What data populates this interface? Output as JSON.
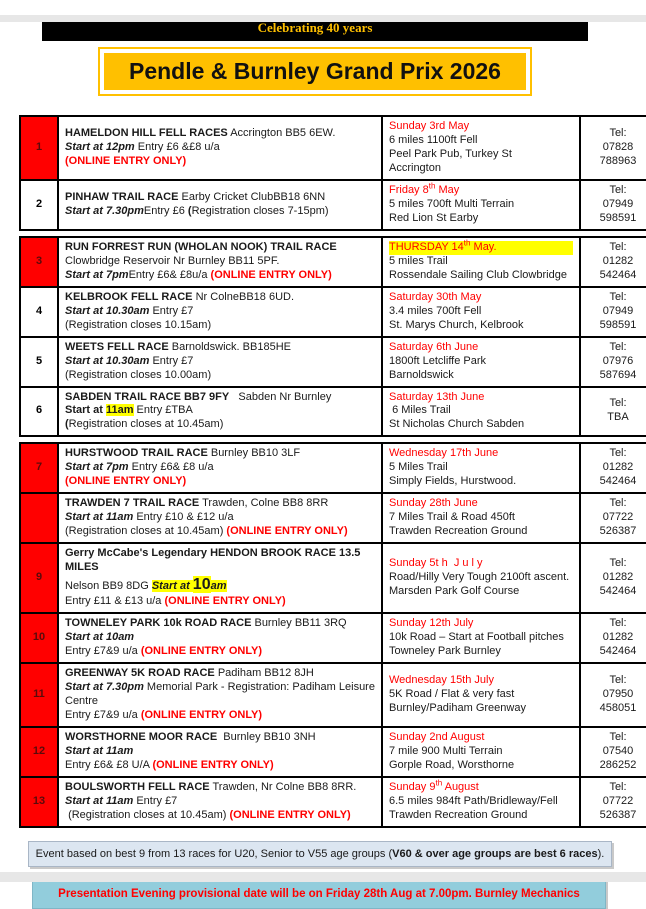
{
  "banner": {
    "text": "Celebrating 40 years"
  },
  "title": {
    "text": "Pendle & Burnley Grand Prix 2026"
  },
  "colors": {
    "accent_red": "#FF0000",
    "highlight_yellow": "#FFFF00",
    "title_gold": "#FFC000",
    "age_note_bg": "#DCE6F1",
    "presentation_bg": "#92CDDC"
  },
  "sections": [
    {
      "rows": [
        {
          "num": "1",
          "num_red": true,
          "details": [
            [
              {
                "t": "HAMELDON HILL FELL RACES",
                "s": "b"
              },
              {
                "t": " Accrington BB5 6EW.",
                "s": "r"
              }
            ],
            [
              {
                "t": "Start at 12pm",
                "s": "bi"
              },
              {
                "t": " Entry £6 &£8 u/a",
                "s": "r"
              }
            ],
            [
              {
                "t": "(ONLINE ENTRY ONLY)",
                "s": "red"
              }
            ]
          ],
          "date": [
            {
              "t": "Sunday 3rd May",
              "s": "red"
            },
            {
              "t": "6 miles 1100ft Fell",
              "s": "plain"
            },
            {
              "t": "Peel Park Pub, Turkey St",
              "s": "plain"
            },
            {
              "t": "Accrington",
              "s": "plain"
            }
          ],
          "tel_label": "Tel:",
          "tel": "07828 788963"
        },
        {
          "num": "2",
          "num_red": false,
          "details": [
            [
              {
                "t": "PINHAW TRAIL RACE",
                "s": "b"
              },
              {
                "t": " Earby Cricket ClubBB18 6NN",
                "s": "r"
              }
            ],
            [
              {
                "t": "Start at 7.30pm",
                "s": "bi"
              },
              {
                "t": "Entry £6 ",
                "s": "r"
              },
              {
                "t": "(",
                "s": "b"
              },
              {
                "t": "Registration closes 7-15pm)",
                "s": "r"
              }
            ]
          ],
          "date": [
            {
              "t": "Friday 8^th May",
              "s": "red"
            },
            {
              "t": "5 miles 700ft Multi Terrain",
              "s": "plain"
            },
            {
              "t": "Red Lion St Earby",
              "s": "plain"
            }
          ],
          "tel_label": "Tel:",
          "tel": "07949 598591"
        }
      ]
    },
    {
      "rows": [
        {
          "num": "3",
          "num_red": true,
          "details": [
            [
              {
                "t": "RUN FORREST RUN (WHOLAN NOOK) TRAIL RACE",
                "s": "b"
              },
              {
                "t": " Clowbridge Reservoir Nr Burnley BB11 5PF.",
                "s": "r"
              }
            ],
            [
              {
                "t": "Start at 7pm",
                "s": "bi"
              },
              {
                "t": "Entry £6& £8u/a ",
                "s": "r"
              },
              {
                "t": "(ONLINE ENTRY ONLY)",
                "s": "red"
              }
            ]
          ],
          "date": [
            {
              "t": "THURSDAY 14^th May.",
              "s": "redhl"
            },
            {
              "t": "5 miles Trail",
              "s": "plain"
            },
            {
              "t": "Rossendale Sailing Club Clowbridge",
              "s": "plain"
            }
          ],
          "tel_label": "Tel:",
          "tel": "01282 542464"
        },
        {
          "num": "4",
          "num_red": false,
          "details": [
            [
              {
                "t": "KELBROOK FELL RACE",
                "s": "b"
              },
              {
                "t": " Nr ColneBB18 6UD.",
                "s": "r"
              }
            ],
            [
              {
                "t": "Start at 10.30am",
                "s": "bi"
              },
              {
                "t": " Entry £7",
                "s": "r"
              }
            ],
            [
              {
                "t": "(Registration closes 10.15am)",
                "s": "r"
              }
            ]
          ],
          "date": [
            {
              "t": "Saturday 30th May",
              "s": "red"
            },
            {
              "t": "3.4 miles 700ft Fell",
              "s": "plain"
            },
            {
              "t": "St. Marys Church, Kelbrook",
              "s": "plain"
            }
          ],
          "tel_label": "Tel:",
          "tel": "07949 598591"
        },
        {
          "num": "5",
          "num_red": false,
          "details": [
            [
              {
                "t": "WEETS FELL RACE",
                "s": "b"
              },
              {
                "t": " Barnoldswick. BB185HE",
                "s": "r"
              }
            ],
            [
              {
                "t": "Start at 10.30am",
                "s": "bi"
              },
              {
                "t": " Entry £7",
                "s": "r"
              }
            ],
            [
              {
                "t": "(Registration closes 10.00am)",
                "s": "r"
              }
            ]
          ],
          "date": [
            {
              "t": "Saturday 6th June",
              "s": "red"
            },
            {
              "t": "1800ft Letcliffe Park",
              "s": "plain"
            },
            {
              "t": "Barnoldswick",
              "s": "plain"
            }
          ],
          "tel_label": "Tel:",
          "tel": "07976 587694"
        },
        {
          "num": "6",
          "num_red": false,
          "details": [
            [
              {
                "t": "SABDEN TRAIL RACE BB7 9FY",
                "s": "b"
              },
              {
                "t": "   Sabden Nr Burnley",
                "s": "r"
              }
            ],
            [
              {
                "t": "Start at ",
                "s": "b"
              },
              {
                "t": "11am",
                "s": "bhl"
              },
              {
                "t": " Entry £TBA",
                "s": "r"
              }
            ],
            [
              {
                "t": "(",
                "s": "b"
              },
              {
                "t": "Registration closes at 10.45am)",
                "s": "r"
              }
            ]
          ],
          "date": [
            {
              "t": "Saturday 13th June",
              "s": "red"
            },
            {
              "t": " 6 Miles Trail",
              "s": "plain"
            },
            {
              "t": "St Nicholas Church Sabden",
              "s": "plain"
            }
          ],
          "tel_label": "Tel:",
          "tel": "TBA"
        }
      ]
    },
    {
      "rows": [
        {
          "num": "7",
          "num_red": true,
          "details": [
            [
              {
                "t": "HURSTWOOD TRAIL RACE",
                "s": "b"
              },
              {
                "t": " Burnley BB10 3LF",
                "s": "r"
              }
            ],
            [
              {
                "t": "Start at 7pm",
                "s": "bi"
              },
              {
                "t": " Entry £6& £8 u/a",
                "s": "r"
              }
            ],
            [
              {
                "t": "(ONLINE ENTRY ONLY)",
                "s": "red"
              }
            ]
          ],
          "date": [
            {
              "t": "Wednesday 17th June",
              "s": "red"
            },
            {
              "t": "5 Miles Trail",
              "s": "plain"
            },
            {
              "t": "Simply Fields, Hurstwood.",
              "s": "plain"
            }
          ],
          "tel_label": "Tel:",
          "tel": "01282 542464"
        },
        {
          "num": "",
          "num_red": true,
          "details": [
            [
              {
                "t": "TRAWDEN 7 TRAIL RACE",
                "s": "b"
              },
              {
                "t": " Trawden, Colne BB8 8RR",
                "s": "r"
              }
            ],
            [
              {
                "t": "Start at 11am",
                "s": "bi"
              },
              {
                "t": " Entry £10 & £12 u/a",
                "s": "r"
              }
            ],
            [
              {
                "t": "(Registration closes at 10.45am) ",
                "s": "r"
              },
              {
                "t": "(ONLINE ENTRY ONLY)",
                "s": "red"
              }
            ]
          ],
          "date": [
            {
              "t": "Sunday 28th June",
              "s": "red"
            },
            {
              "t": "7 Miles Trail & Road 450ft",
              "s": "plain"
            },
            {
              "t": "Trawden Recreation Ground",
              "s": "plain"
            }
          ],
          "tel_label": "Tel:",
          "tel": "07722 526387"
        },
        {
          "num": "9",
          "num_red": true,
          "details": [
            [
              {
                "t": "Gerry McCabe's Legendary HENDON BROOK RACE 13.5 MILES",
                "s": "b"
              }
            ],
            [
              {
                "t": "Nelson BB9 8DG ",
                "s": "r"
              },
              {
                "t": "Start at ",
                "s": "bihl"
              },
              {
                "t": "10",
                "s": "bhl-big"
              },
              {
                "t": "am",
                "s": "bihl"
              }
            ],
            [
              {
                "t": "Entry £11 & £13 u/a ",
                "s": "r"
              },
              {
                "t": "(ONLINE ENTRY ONLY)",
                "s": "red"
              }
            ]
          ],
          "date": [
            {
              "t": "Sunday 5t h  J u l y",
              "s": "red"
            },
            {
              "t": "Road/Hilly Very Tough 2100ft ascent.",
              "s": "plain"
            },
            {
              "t": "Marsden Park Golf Course",
              "s": "plain"
            }
          ],
          "tel_label": "Tel:",
          "tel": "01282 542464"
        },
        {
          "num": "10",
          "num_red": true,
          "details": [
            [
              {
                "t": "TOWNELEY PARK 10k ROAD RACE",
                "s": "b"
              },
              {
                "t": " Burnley BB11 3RQ",
                "s": "r"
              }
            ],
            [
              {
                "t": "Start at 10am",
                "s": "bi"
              }
            ],
            [
              {
                "t": "Entry £7&9 u/a ",
                "s": "r"
              },
              {
                "t": "(ONLINE ENTRY ONLY)",
                "s": "red"
              }
            ]
          ],
          "date": [
            {
              "t": "Sunday 12th July",
              "s": "red"
            },
            {
              "t": "10k Road – Start at Football pitches",
              "s": "plain"
            },
            {
              "t": "Towneley Park Burnley",
              "s": "plain"
            }
          ],
          "tel_label": "Tel:",
          "tel": "01282 542464"
        },
        {
          "num": "11",
          "num_red": true,
          "details": [
            [
              {
                "t": "GREENWAY 5K ROAD RACE",
                "s": "b"
              },
              {
                "t": " Padiham BB12 8JH",
                "s": "r"
              }
            ],
            [
              {
                "t": "Start at 7.30pm",
                "s": "bi"
              },
              {
                "t": " Memorial Park - Registration: Padiham Leisure Centre",
                "s": "r"
              }
            ],
            [
              {
                "t": "Entry £7&9 u/a ",
                "s": "r"
              },
              {
                "t": "(ONLINE ENTRY ONLY)",
                "s": "red"
              }
            ]
          ],
          "date": [
            {
              "t": "Wednesday 15th July",
              "s": "red"
            },
            {
              "t": "5K Road / Flat & very fast",
              "s": "plain"
            },
            {
              "t": "Burnley/Padiham Greenway",
              "s": "plain"
            }
          ],
          "tel_label": "Tel:",
          "tel": "07950 458051"
        },
        {
          "num": "12",
          "num_red": true,
          "details": [
            [
              {
                "t": "WORSTHORNE MOOR RACE",
                "s": "b"
              },
              {
                "t": "  Burnley BB10 3NH",
                "s": "r"
              }
            ],
            [
              {
                "t": "Start at 11am",
                "s": "bi"
              }
            ],
            [
              {
                "t": "Entry £6& £8 U/A ",
                "s": "r"
              },
              {
                "t": "(ONLINE ENTRY ONLY)",
                "s": "red"
              }
            ]
          ],
          "date": [
            {
              "t": "Sunday 2nd August",
              "s": "red"
            },
            {
              "t": "7 mile 900 Multi Terrain",
              "s": "plain"
            },
            {
              "t": "Gorple Road, Worsthorne",
              "s": "plain"
            }
          ],
          "tel_label": "Tel:",
          "tel": "07540 286252"
        },
        {
          "num": "13",
          "num_red": true,
          "details": [
            [
              {
                "t": "BOULSWORTH FELL RACE",
                "s": "b"
              },
              {
                "t": " Trawden, Nr Colne BB8 8RR.",
                "s": "r"
              }
            ],
            [
              {
                "t": "Start at 11am",
                "s": "bi"
              },
              {
                "t": " Entry £7",
                "s": "r"
              }
            ],
            [
              {
                "t": " (Registration closes at 10.45am) ",
                "s": "r"
              },
              {
                "t": "(ONLINE ENTRY ONLY)",
                "s": "red"
              }
            ]
          ],
          "date": [
            {
              "t": "Sunday 9^th August",
              "s": "red"
            },
            {
              "t": "6.5 miles 984ft Path/Bridleway/Fell",
              "s": "plain"
            },
            {
              "t": "Trawden Recreation Ground",
              "s": "plain"
            }
          ],
          "tel_label": "Tel:",
          "tel": "07722 526387"
        }
      ]
    }
  ],
  "age_note": {
    "segments": [
      {
        "t": "Event based on best 9 from 13 races for U20, Senior to V55 age groups (",
        "s": "r"
      },
      {
        "t": "V60 & over age groups are best 6 races",
        "s": "b"
      },
      {
        "t": ").",
        "s": "r"
      }
    ]
  },
  "presentation_note": {
    "text": "Presentation Evening provisional date will be on Friday 28th Aug at 7.00pm.   Burnley Mechanics"
  }
}
